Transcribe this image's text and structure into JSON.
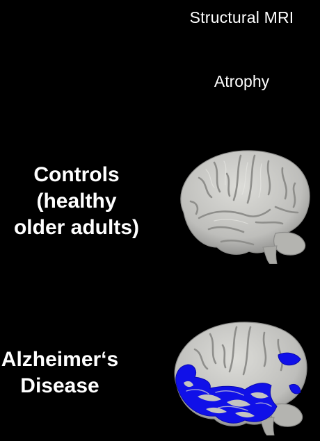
{
  "header": {
    "title": "Structural MRI",
    "subtitle": "Atrophy"
  },
  "rows": [
    {
      "label_lines": [
        "Controls",
        "(healthy",
        "older adults)"
      ],
      "image_icon": "brain-lateral-view-icon"
    },
    {
      "label_lines": [
        "Alzheimer‘s",
        "Disease"
      ],
      "image_icon": "brain-lateral-view-atrophy-icon",
      "highlight_color": "#1010e8"
    }
  ],
  "colors": {
    "background": "#000000",
    "text": "#ffffff",
    "brain": "#c8c8c4",
    "atrophy": "#1010e8"
  }
}
